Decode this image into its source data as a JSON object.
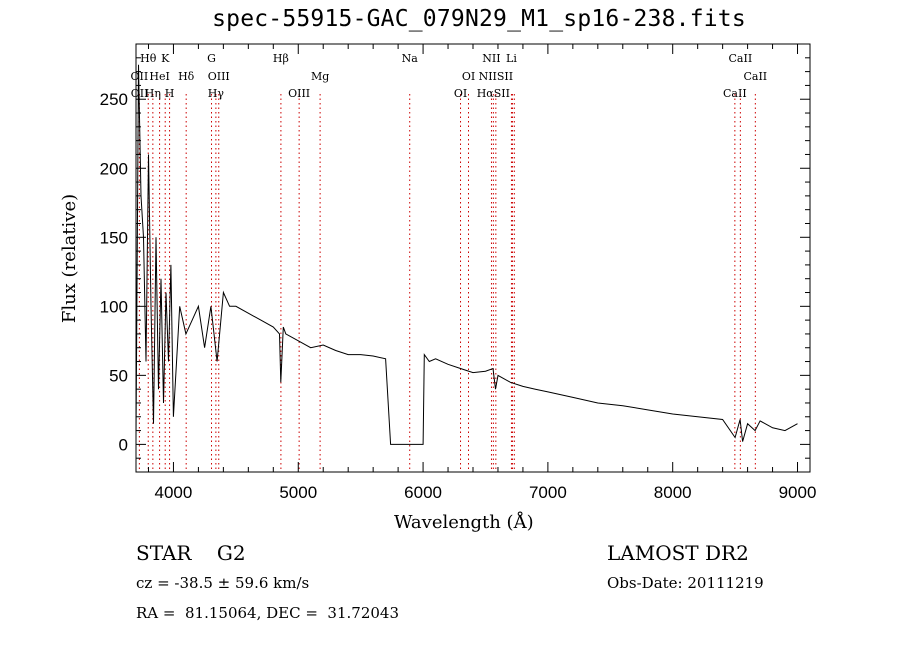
{
  "header": {
    "title": "spec-55915-GAC_079N29_M1_sp16-238.fits"
  },
  "chart_data": {
    "type": "line",
    "title": "spec-55915-GAC_079N29_M1_sp16-238.fits",
    "xlabel": "Wavelength (Å)",
    "ylabel": "Flux (relative)",
    "xlim": [
      3700,
      9100
    ],
    "ylim": [
      -20,
      290
    ],
    "xticks": [
      4000,
      5000,
      6000,
      7000,
      8000,
      9000
    ],
    "yticks": [
      0,
      50,
      100,
      150,
      200,
      250
    ],
    "series": [
      {
        "x": [
          3700,
          3720,
          3740,
          3760,
          3780,
          3800,
          3820,
          3840,
          3860,
          3880,
          3900,
          3920,
          3940,
          3960,
          3980,
          4000,
          4050,
          4100,
          4150,
          4200,
          4250,
          4300,
          4350,
          4400,
          4450,
          4500,
          4600,
          4700,
          4800,
          4850,
          4860,
          4880,
          4900,
          5000,
          5100,
          5200,
          5300,
          5400,
          5500,
          5600,
          5700,
          5740,
          5750,
          6000,
          6010,
          6050,
          6100,
          6200,
          6300,
          6400,
          6500,
          6560,
          6580,
          6600,
          6700,
          6800,
          6900,
          7000,
          7200,
          7400,
          7600,
          7800,
          8000,
          8200,
          8400,
          8500,
          8540,
          8560,
          8600,
          8660,
          8700,
          8800,
          8900,
          9000
        ],
        "y": [
          5,
          275,
          180,
          150,
          60,
          210,
          100,
          15,
          150,
          40,
          120,
          30,
          110,
          60,
          130,
          20,
          100,
          80,
          90,
          100,
          70,
          100,
          60,
          110,
          100,
          100,
          95,
          90,
          85,
          80,
          45,
          85,
          80,
          75,
          70,
          72,
          68,
          65,
          65,
          64,
          62,
          0,
          0,
          0,
          65,
          60,
          62,
          58,
          55,
          52,
          53,
          55,
          40,
          50,
          45,
          42,
          40,
          38,
          34,
          30,
          28,
          25,
          22,
          20,
          18,
          5,
          18,
          2,
          15,
          10,
          17,
          12,
          10,
          15
        ]
      }
    ],
    "line_labels": [
      {
        "label": "Hθ",
        "x": 3798
      },
      {
        "label": "K",
        "x": 3934
      },
      {
        "label": "G",
        "x": 4305
      },
      {
        "label": "Hβ",
        "x": 4861
      },
      {
        "label": "Na",
        "x": 5893
      },
      {
        "label": "NII",
        "x": 6548
      },
      {
        "label": "Li",
        "x": 6708
      },
      {
        "label": "CaII",
        "x": 8542
      },
      {
        "label": "OII",
        "x": 3727
      },
      {
        "label": "HeI",
        "x": 3889
      },
      {
        "label": "Hδ",
        "x": 4102
      },
      {
        "label": "OIII",
        "x": 4363
      },
      {
        "label": "Mg",
        "x": 5175
      },
      {
        "label": "OI",
        "x": 6364
      },
      {
        "label": "NIISII",
        "x": 6583
      },
      {
        "label": "CaII",
        "x": 8662
      },
      {
        "label": "OII",
        "x": 3729
      },
      {
        "label": "Hη",
        "x": 3835
      },
      {
        "label": "H",
        "x": 3969
      },
      {
        "label": "Hγ",
        "x": 4340
      },
      {
        "label": "OIII",
        "x": 5007
      },
      {
        "label": "OI",
        "x": 6300
      },
      {
        "label": "HαSII",
        "x": 6563
      },
      {
        "label": "CaII",
        "x": 8498
      }
    ],
    "dotted_lines_x": [
      3727,
      3798,
      3835,
      3889,
      3934,
      3969,
      4102,
      4305,
      4340,
      4363,
      4861,
      5007,
      5175,
      5893,
      6300,
      6364,
      6548,
      6563,
      6583,
      6708,
      6716,
      6731,
      8498,
      8542,
      8662
    ],
    "grid": false
  },
  "info": {
    "star_type": "STAR    G2",
    "survey": "LAMOST DR2",
    "cz": "cz = -38.5 ± 59.6 km/s",
    "obs_date": "Obs-Date: 20111219",
    "radec": "RA =  81.15064, DEC =  31.72043"
  },
  "colors": {
    "line": "#000000",
    "dotted": "#cc0000"
  }
}
